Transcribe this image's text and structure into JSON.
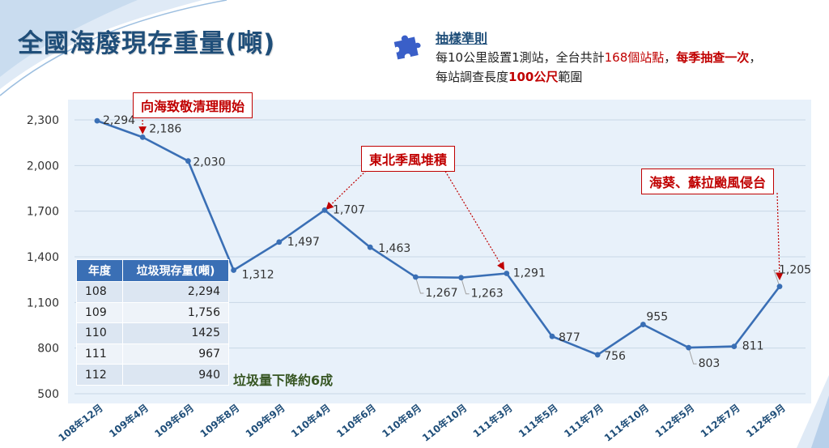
{
  "page_title": "全國海廢現存重量(噸)",
  "sampling_rule": {
    "title": "抽樣準則",
    "line1_a": "每10公里設置1測站，全台共計",
    "line1_b": "168個站點",
    "line1_c": "，",
    "line1_d": "每季抽查一次",
    "line1_e": "，",
    "line2_a": "每站調查長度",
    "line2_b": "100公尺",
    "line2_c": "範圍"
  },
  "callouts": {
    "c1": "向海致敬清理開始",
    "c2": "東北季風堆積",
    "c3": "海葵、蘇拉颱風侵台"
  },
  "summary_table": {
    "headers": [
      "年度",
      "垃圾現存量(噸)"
    ],
    "rows": [
      [
        "108",
        "2,294"
      ],
      [
        "109",
        "1,756"
      ],
      [
        "110",
        "1425"
      ],
      [
        "111",
        "967"
      ],
      [
        "112",
        "940"
      ]
    ]
  },
  "note": "垃圾量下降約6成",
  "colors": {
    "line": "#3a6fb5",
    "accent": "#c00000",
    "title": "#1f4e79"
  },
  "chart_data": {
    "type": "line",
    "categories": [
      "108年12月",
      "109年4月",
      "109年6月",
      "109年8月",
      "109年9月",
      "110年4月",
      "110年6月",
      "110年8月",
      "110年10月",
      "111年3月",
      "111年5月",
      "111年7月",
      "111年10月",
      "112年5月",
      "112年7月",
      "112年9月"
    ],
    "values": [
      2294,
      2186,
      2030,
      1312,
      1497,
      1707,
      1463,
      1267,
      1263,
      1291,
      877,
      756,
      955,
      803,
      811,
      1205
    ],
    "data_labels": [
      "2,294",
      "2,186",
      "2,030",
      "1,312",
      "1,497",
      "1,707",
      "1,463",
      "1,267",
      "1,263",
      "1,291",
      "877",
      "756",
      "955",
      "803",
      "811",
      "1,205"
    ],
    "yticks": [
      500,
      800,
      1100,
      1400,
      1700,
      2000,
      2300
    ],
    "ytick_labels": [
      "500",
      "800",
      "1,100",
      "1,400",
      "1,700",
      "2,000",
      "2,300"
    ],
    "ylim": [
      500,
      2300
    ],
    "grid": true,
    "title": "",
    "xlabel": "",
    "ylabel": ""
  }
}
